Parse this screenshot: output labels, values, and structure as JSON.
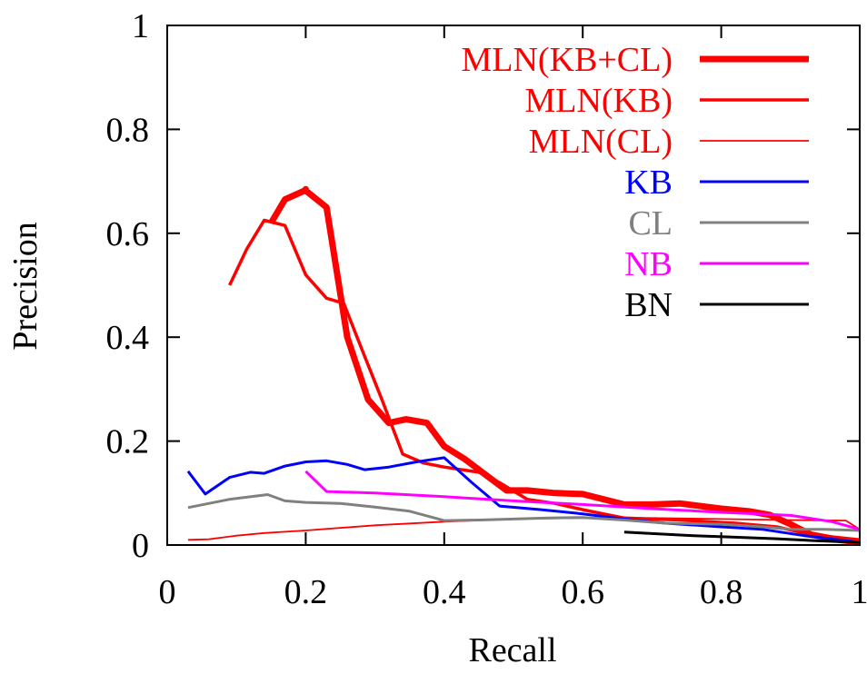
{
  "chart_data": {
    "type": "line",
    "title": "",
    "xlabel": "Recall",
    "ylabel": "Precision",
    "xlim": [
      0,
      1
    ],
    "ylim": [
      0,
      1
    ],
    "x_ticks": [
      0,
      0.2,
      0.4,
      0.6,
      0.8,
      1
    ],
    "y_ticks": [
      0,
      0.2,
      0.4,
      0.6,
      0.8,
      1
    ],
    "x_tick_labels": [
      "0",
      "0.2",
      "0.4",
      "0.6",
      "0.8",
      "1"
    ],
    "y_tick_labels": [
      "0",
      "0.2",
      "0.4",
      "0.6",
      "0.8",
      "1"
    ],
    "grid": false,
    "legend_position": "top-right",
    "series": [
      {
        "name": "MLN(KB+CL)",
        "color": "#ff0000",
        "line_weight": "heavy",
        "points": [
          [
            0.15,
            0.62
          ],
          [
            0.17,
            0.665
          ],
          [
            0.2,
            0.683
          ],
          [
            0.2,
            0.684
          ],
          [
            0.2,
            0.685
          ],
          [
            0.2,
            0.685
          ],
          [
            0.2,
            0.684
          ],
          [
            0.2,
            0.683
          ],
          [
            0.2,
            0.682
          ],
          [
            0.23,
            0.65
          ],
          [
            0.26,
            0.4
          ],
          [
            0.29,
            0.28
          ],
          [
            0.32,
            0.235
          ],
          [
            0.345,
            0.242
          ],
          [
            0.375,
            0.235
          ],
          [
            0.4,
            0.19
          ],
          [
            0.43,
            0.165
          ],
          [
            0.46,
            0.135
          ],
          [
            0.49,
            0.105
          ],
          [
            0.52,
            0.105
          ],
          [
            0.56,
            0.1
          ],
          [
            0.6,
            0.098
          ],
          [
            0.66,
            0.078
          ],
          [
            0.7,
            0.078
          ],
          [
            0.74,
            0.08
          ],
          [
            0.8,
            0.07
          ],
          [
            0.84,
            0.065
          ],
          [
            0.87,
            0.058
          ],
          [
            0.9,
            0.04
          ],
          [
            0.93,
            0.02
          ],
          [
            0.97,
            0.01
          ],
          [
            1.0,
            0.005
          ]
        ]
      },
      {
        "name": "MLN(KB)",
        "color": "#ff0000",
        "line_weight": "medium",
        "points": [
          [
            0.09,
            0.5
          ],
          [
            0.115,
            0.57
          ],
          [
            0.14,
            0.625
          ],
          [
            0.17,
            0.615
          ],
          [
            0.2,
            0.52
          ],
          [
            0.23,
            0.475
          ],
          [
            0.255,
            0.465
          ],
          [
            0.28,
            0.38
          ],
          [
            0.31,
            0.28
          ],
          [
            0.34,
            0.175
          ],
          [
            0.37,
            0.158
          ],
          [
            0.4,
            0.15
          ],
          [
            0.45,
            0.14
          ],
          [
            0.48,
            0.12
          ],
          [
            0.52,
            0.088
          ],
          [
            0.56,
            0.08
          ],
          [
            0.6,
            0.068
          ],
          [
            0.66,
            0.052
          ],
          [
            0.74,
            0.048
          ],
          [
            0.82,
            0.042
          ],
          [
            0.88,
            0.035
          ],
          [
            0.93,
            0.02
          ],
          [
            1.0,
            0.01
          ]
        ]
      },
      {
        "name": "MLN(CL)",
        "color": "#ff0000",
        "line_weight": "thin",
        "points": [
          [
            0.03,
            0.01
          ],
          [
            0.06,
            0.011
          ],
          [
            0.1,
            0.018
          ],
          [
            0.14,
            0.023
          ],
          [
            0.2,
            0.028
          ],
          [
            0.3,
            0.038
          ],
          [
            0.4,
            0.045
          ],
          [
            0.5,
            0.05
          ],
          [
            0.6,
            0.052
          ],
          [
            0.7,
            0.052
          ],
          [
            0.8,
            0.05
          ],
          [
            0.9,
            0.048
          ],
          [
            0.98,
            0.047
          ],
          [
            1.0,
            0.03
          ]
        ]
      },
      {
        "name": "KB",
        "color": "#0000ff",
        "line_weight": "normal",
        "points": [
          [
            0.03,
            0.142
          ],
          [
            0.055,
            0.098
          ],
          [
            0.09,
            0.13
          ],
          [
            0.12,
            0.14
          ],
          [
            0.14,
            0.138
          ],
          [
            0.17,
            0.152
          ],
          [
            0.2,
            0.16
          ],
          [
            0.23,
            0.162
          ],
          [
            0.26,
            0.155
          ],
          [
            0.285,
            0.145
          ],
          [
            0.32,
            0.15
          ],
          [
            0.36,
            0.16
          ],
          [
            0.4,
            0.168
          ],
          [
            0.44,
            0.12
          ],
          [
            0.48,
            0.075
          ],
          [
            0.54,
            0.068
          ],
          [
            0.6,
            0.06
          ],
          [
            0.66,
            0.05
          ],
          [
            0.72,
            0.042
          ],
          [
            0.8,
            0.035
          ],
          [
            0.86,
            0.03
          ],
          [
            0.92,
            0.018
          ],
          [
            1.0,
            0.005
          ]
        ]
      },
      {
        "name": "CL",
        "color": "#808080",
        "line_weight": "normal",
        "points": [
          [
            0.03,
            0.072
          ],
          [
            0.09,
            0.088
          ],
          [
            0.145,
            0.097
          ],
          [
            0.17,
            0.085
          ],
          [
            0.2,
            0.082
          ],
          [
            0.25,
            0.08
          ],
          [
            0.3,
            0.073
          ],
          [
            0.35,
            0.065
          ],
          [
            0.4,
            0.047
          ],
          [
            0.45,
            0.048
          ],
          [
            0.5,
            0.05
          ],
          [
            0.55,
            0.052
          ],
          [
            0.6,
            0.053
          ],
          [
            0.66,
            0.048
          ],
          [
            0.72,
            0.042
          ],
          [
            0.8,
            0.04
          ],
          [
            0.86,
            0.035
          ],
          [
            0.9,
            0.03
          ],
          [
            0.95,
            0.03
          ],
          [
            1.0,
            0.028
          ]
        ]
      },
      {
        "name": "NB",
        "color": "#ff00ff",
        "line_weight": "normal",
        "points": [
          [
            0.2,
            0.142
          ],
          [
            0.23,
            0.103
          ],
          [
            0.3,
            0.1
          ],
          [
            0.4,
            0.093
          ],
          [
            0.5,
            0.085
          ],
          [
            0.6,
            0.078
          ],
          [
            0.7,
            0.07
          ],
          [
            0.8,
            0.063
          ],
          [
            0.9,
            0.057
          ],
          [
            0.96,
            0.045
          ],
          [
            1.0,
            0.03
          ]
        ]
      },
      {
        "name": "BN",
        "color": "#000000",
        "line_weight": "normal",
        "points": [
          [
            0.66,
            0.025
          ],
          [
            0.7,
            0.022
          ],
          [
            0.76,
            0.018
          ],
          [
            0.82,
            0.015
          ],
          [
            0.88,
            0.012
          ],
          [
            0.94,
            0.008
          ],
          [
            1.0,
            0.005
          ]
        ]
      }
    ]
  }
}
